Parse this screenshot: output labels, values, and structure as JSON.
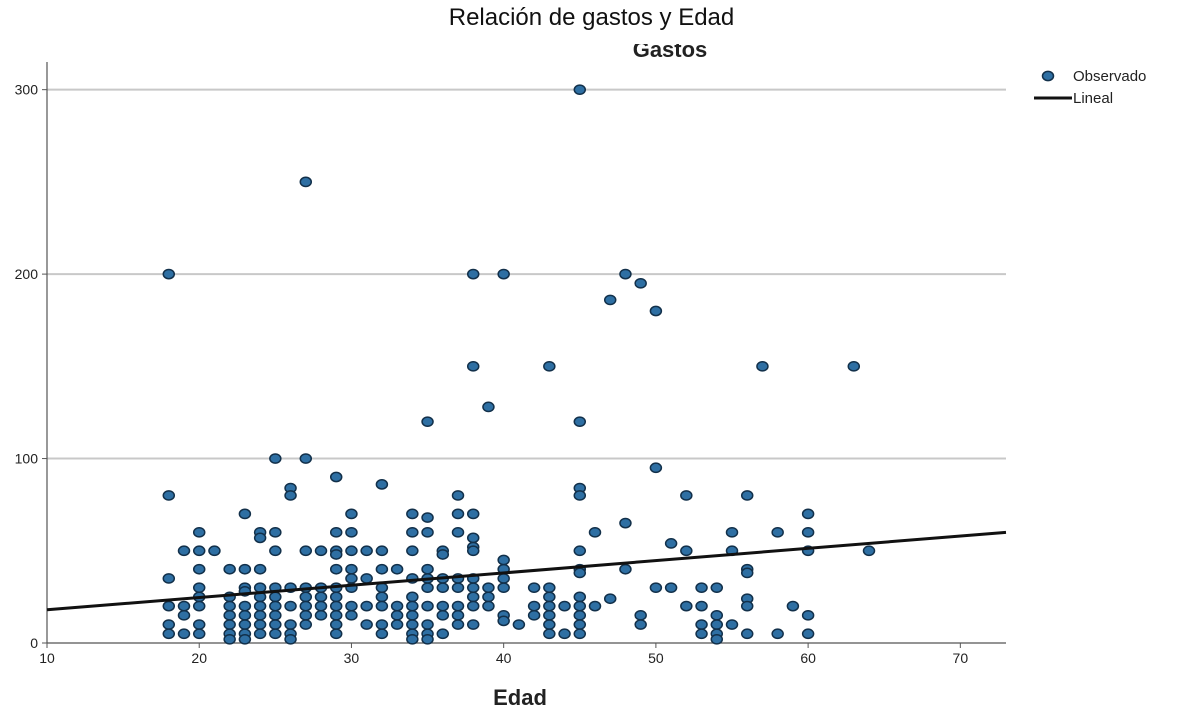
{
  "chart_data": {
    "type": "scatter",
    "title": "Relación de gastos y Edad",
    "subtitle": "Gastos",
    "xlabel": "Edad",
    "ylabel": "",
    "xlim": [
      10,
      73
    ],
    "ylim": [
      0,
      315
    ],
    "x_ticks": [
      10,
      20,
      30,
      40,
      50,
      60,
      70
    ],
    "y_ticks": [
      0,
      100,
      200,
      300
    ],
    "grid": "horizontal",
    "legend_position": "top-right",
    "colors": {
      "points": "#2e6fa3",
      "point_edge": "#12304a",
      "line": "#111111",
      "grid": "#c8c8c8"
    },
    "series": [
      {
        "name": "Observado",
        "kind": "points",
        "points": [
          [
            18,
            200
          ],
          [
            18,
            80
          ],
          [
            18,
            35
          ],
          [
            18,
            20
          ],
          [
            18,
            10
          ],
          [
            18,
            5
          ],
          [
            19,
            50
          ],
          [
            19,
            20
          ],
          [
            19,
            15
          ],
          [
            19,
            5
          ],
          [
            20,
            60
          ],
          [
            20,
            50
          ],
          [
            20,
            40
          ],
          [
            20,
            30
          ],
          [
            20,
            25
          ],
          [
            20,
            20
          ],
          [
            20,
            10
          ],
          [
            20,
            5
          ],
          [
            21,
            50
          ],
          [
            22,
            40
          ],
          [
            22,
            25
          ],
          [
            22,
            20
          ],
          [
            22,
            15
          ],
          [
            22,
            10
          ],
          [
            22,
            5
          ],
          [
            22,
            2
          ],
          [
            23,
            70
          ],
          [
            23,
            40
          ],
          [
            23,
            30
          ],
          [
            23,
            28
          ],
          [
            23,
            20
          ],
          [
            23,
            15
          ],
          [
            23,
            10
          ],
          [
            23,
            5
          ],
          [
            23,
            2
          ],
          [
            24,
            60
          ],
          [
            24,
            57
          ],
          [
            24,
            40
          ],
          [
            24,
            30
          ],
          [
            24,
            25
          ],
          [
            24,
            20
          ],
          [
            24,
            15
          ],
          [
            24,
            10
          ],
          [
            24,
            5
          ],
          [
            25,
            100
          ],
          [
            25,
            60
          ],
          [
            25,
            50
          ],
          [
            25,
            30
          ],
          [
            25,
            25
          ],
          [
            25,
            20
          ],
          [
            25,
            15
          ],
          [
            25,
            10
          ],
          [
            25,
            5
          ],
          [
            26,
            84
          ],
          [
            26,
            80
          ],
          [
            26,
            30
          ],
          [
            26,
            20
          ],
          [
            26,
            10
          ],
          [
            26,
            5
          ],
          [
            26,
            2
          ],
          [
            27,
            250
          ],
          [
            27,
            100
          ],
          [
            27,
            50
          ],
          [
            27,
            30
          ],
          [
            27,
            25
          ],
          [
            27,
            20
          ],
          [
            27,
            15
          ],
          [
            27,
            10
          ],
          [
            28,
            50
          ],
          [
            28,
            30
          ],
          [
            28,
            25
          ],
          [
            28,
            20
          ],
          [
            28,
            15
          ],
          [
            29,
            90
          ],
          [
            29,
            60
          ],
          [
            29,
            50
          ],
          [
            29,
            48
          ],
          [
            29,
            40
          ],
          [
            29,
            30
          ],
          [
            29,
            25
          ],
          [
            29,
            20
          ],
          [
            29,
            15
          ],
          [
            29,
            10
          ],
          [
            29,
            5
          ],
          [
            30,
            70
          ],
          [
            30,
            60
          ],
          [
            30,
            50
          ],
          [
            30,
            40
          ],
          [
            30,
            35
          ],
          [
            30,
            30
          ],
          [
            30,
            20
          ],
          [
            30,
            15
          ],
          [
            31,
            50
          ],
          [
            31,
            35
          ],
          [
            31,
            20
          ],
          [
            31,
            10
          ],
          [
            32,
            86
          ],
          [
            32,
            50
          ],
          [
            32,
            40
          ],
          [
            32,
            30
          ],
          [
            32,
            25
          ],
          [
            32,
            20
          ],
          [
            32,
            10
          ],
          [
            32,
            5
          ],
          [
            33,
            40
          ],
          [
            33,
            20
          ],
          [
            33,
            15
          ],
          [
            33,
            10
          ],
          [
            34,
            70
          ],
          [
            34,
            60
          ],
          [
            34,
            50
          ],
          [
            34,
            35
          ],
          [
            34,
            25
          ],
          [
            34,
            20
          ],
          [
            34,
            15
          ],
          [
            34,
            10
          ],
          [
            34,
            5
          ],
          [
            34,
            2
          ],
          [
            35,
            120
          ],
          [
            35,
            68
          ],
          [
            35,
            60
          ],
          [
            35,
            40
          ],
          [
            35,
            35
          ],
          [
            35,
            30
          ],
          [
            35,
            20
          ],
          [
            35,
            10
          ],
          [
            35,
            5
          ],
          [
            35,
            2
          ],
          [
            36,
            50
          ],
          [
            36,
            48
          ],
          [
            36,
            35
          ],
          [
            36,
            30
          ],
          [
            36,
            20
          ],
          [
            36,
            15
          ],
          [
            36,
            5
          ],
          [
            37,
            80
          ],
          [
            37,
            70
          ],
          [
            37,
            60
          ],
          [
            37,
            35
          ],
          [
            37,
            30
          ],
          [
            37,
            20
          ],
          [
            37,
            15
          ],
          [
            37,
            10
          ],
          [
            38,
            200
          ],
          [
            38,
            150
          ],
          [
            38,
            70
          ],
          [
            38,
            57
          ],
          [
            38,
            52
          ],
          [
            38,
            50
          ],
          [
            38,
            35
          ],
          [
            38,
            30
          ],
          [
            38,
            25
          ],
          [
            38,
            20
          ],
          [
            38,
            10
          ],
          [
            39,
            128
          ],
          [
            39,
            30
          ],
          [
            39,
            25
          ],
          [
            39,
            20
          ],
          [
            40,
            200
          ],
          [
            40,
            45
          ],
          [
            40,
            40
          ],
          [
            40,
            35
          ],
          [
            40,
            30
          ],
          [
            40,
            15
          ],
          [
            40,
            12
          ],
          [
            41,
            10
          ],
          [
            42,
            30
          ],
          [
            42,
            20
          ],
          [
            42,
            15
          ],
          [
            43,
            150
          ],
          [
            43,
            30
          ],
          [
            43,
            25
          ],
          [
            43,
            20
          ],
          [
            43,
            15
          ],
          [
            43,
            10
          ],
          [
            43,
            5
          ],
          [
            44,
            20
          ],
          [
            44,
            5
          ],
          [
            45,
            300
          ],
          [
            45,
            120
          ],
          [
            45,
            84
          ],
          [
            45,
            80
          ],
          [
            45,
            50
          ],
          [
            45,
            40
          ],
          [
            45,
            38
          ],
          [
            45,
            25
          ],
          [
            45,
            20
          ],
          [
            45,
            15
          ],
          [
            45,
            10
          ],
          [
            45,
            5
          ],
          [
            46,
            60
          ],
          [
            46,
            20
          ],
          [
            47,
            186
          ],
          [
            47,
            24
          ],
          [
            48,
            200
          ],
          [
            48,
            65
          ],
          [
            48,
            40
          ],
          [
            49,
            195
          ],
          [
            49,
            15
          ],
          [
            49,
            10
          ],
          [
            50,
            180
          ],
          [
            50,
            95
          ],
          [
            50,
            30
          ],
          [
            51,
            54
          ],
          [
            51,
            30
          ],
          [
            52,
            80
          ],
          [
            52,
            50
          ],
          [
            52,
            20
          ],
          [
            53,
            30
          ],
          [
            53,
            20
          ],
          [
            53,
            10
          ],
          [
            53,
            5
          ],
          [
            54,
            30
          ],
          [
            54,
            15
          ],
          [
            54,
            10
          ],
          [
            54,
            5
          ],
          [
            54,
            2
          ],
          [
            55,
            60
          ],
          [
            55,
            50
          ],
          [
            55,
            10
          ],
          [
            56,
            80
          ],
          [
            56,
            40
          ],
          [
            56,
            38
          ],
          [
            56,
            24
          ],
          [
            56,
            20
          ],
          [
            56,
            5
          ],
          [
            57,
            150
          ],
          [
            58,
            60
          ],
          [
            58,
            5
          ],
          [
            59,
            20
          ],
          [
            60,
            70
          ],
          [
            60,
            60
          ],
          [
            60,
            50
          ],
          [
            60,
            15
          ],
          [
            60,
            5
          ],
          [
            63,
            150
          ],
          [
            64,
            50
          ]
        ]
      },
      {
        "name": "Lineal",
        "kind": "line",
        "line": {
          "x": [
            10,
            73
          ],
          "y": [
            18,
            60
          ]
        }
      }
    ]
  }
}
